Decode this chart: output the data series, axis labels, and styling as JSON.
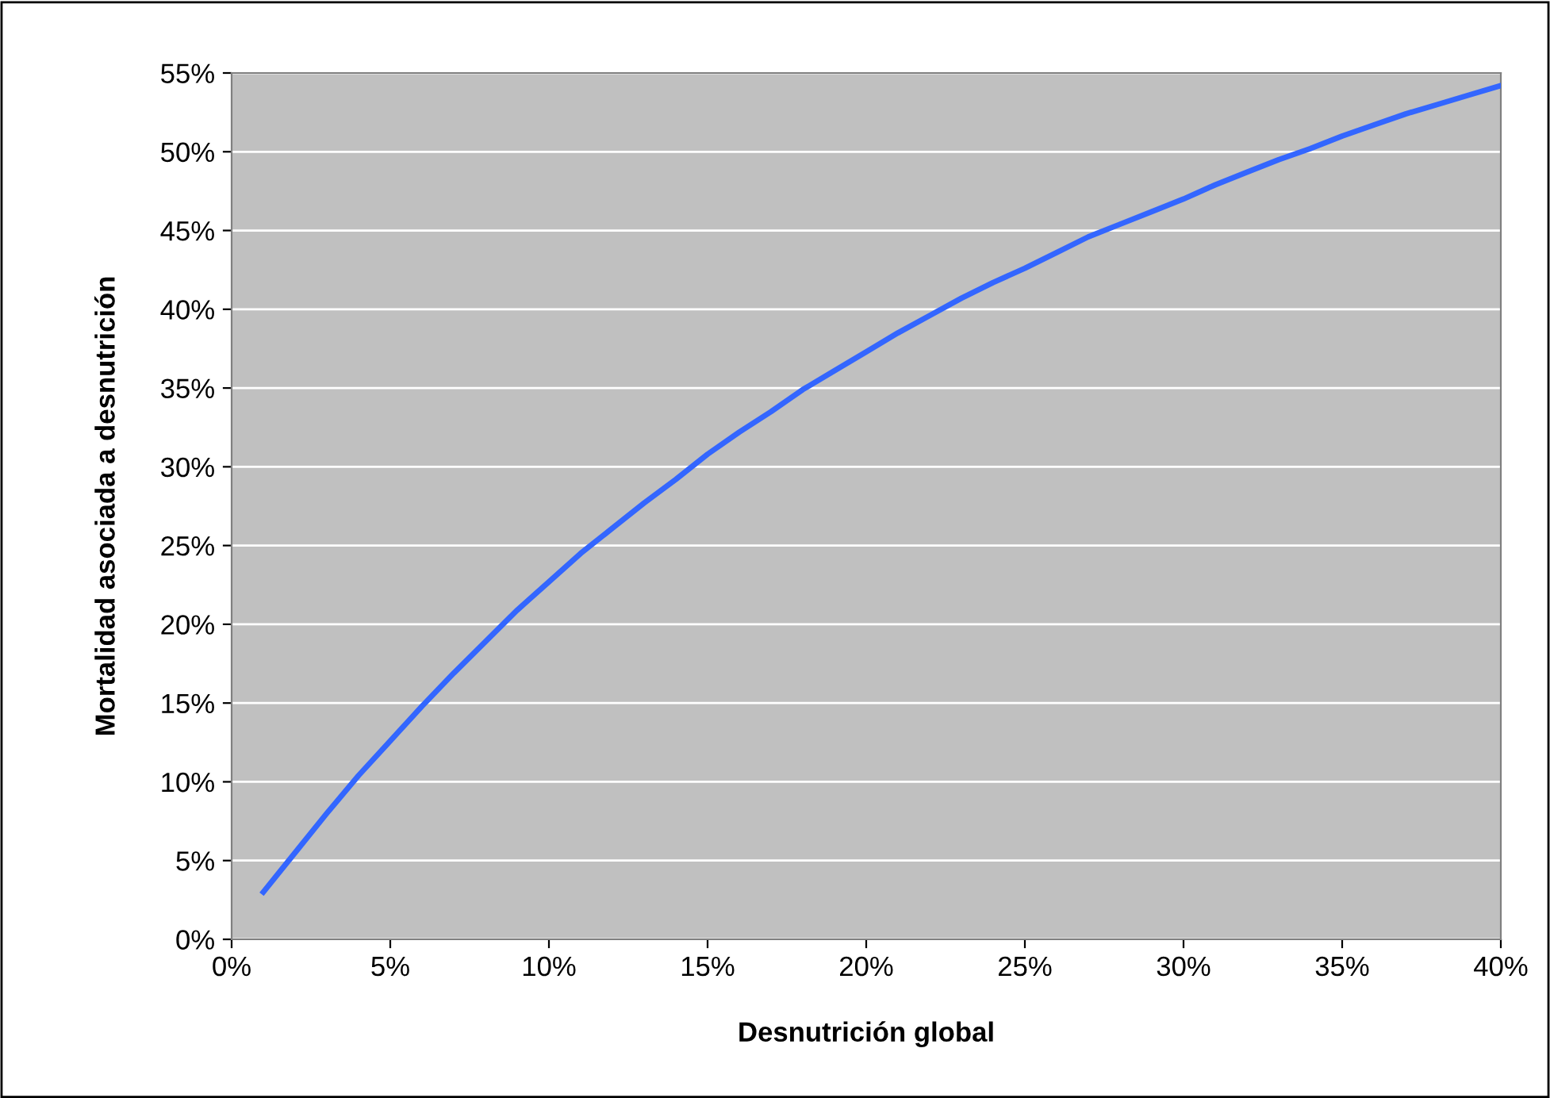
{
  "chart_data": {
    "type": "line",
    "xlabel": "Desnutrición global",
    "ylabel": "Mortalidad asociada a desnutrición",
    "x": [
      1,
      2,
      3,
      4,
      5,
      6,
      7,
      8,
      9,
      10,
      11,
      12,
      13,
      14,
      15,
      16,
      17,
      18,
      19,
      20,
      21,
      22,
      23,
      24,
      25,
      26,
      27,
      28,
      29,
      30,
      31,
      32,
      33,
      34,
      35,
      36,
      37,
      38,
      39,
      40
    ],
    "series": [
      {
        "color": "#3366ff",
        "values": [
          3,
          5.5,
          8,
          10.4,
          12.6,
          14.8,
          16.9,
          18.9,
          20.9,
          22.7,
          24.5,
          26.1,
          27.7,
          29.2,
          30.8,
          32.2,
          33.5,
          34.9,
          36.1,
          37.3,
          38.5,
          39.6,
          40.7,
          41.7,
          42.6,
          43.6,
          44.6,
          45.4,
          46.2,
          47,
          47.9,
          48.7,
          49.5,
          50.2,
          51,
          51.7,
          52.4,
          53,
          53.6,
          54.2
        ]
      }
    ],
    "xlim": [
      0,
      40
    ],
    "ylim": [
      0,
      55
    ],
    "xticks": [
      {
        "value": 0,
        "label": "0%"
      },
      {
        "value": 5,
        "label": "5%"
      },
      {
        "value": 10,
        "label": "10%"
      },
      {
        "value": 15,
        "label": "15%"
      },
      {
        "value": 20,
        "label": "20%"
      },
      {
        "value": 25,
        "label": "25%"
      },
      {
        "value": 30,
        "label": "30%"
      },
      {
        "value": 35,
        "label": "35%"
      },
      {
        "value": 40,
        "label": "40%"
      }
    ],
    "yticks": [
      {
        "value": 0,
        "label": "0%"
      },
      {
        "value": 5,
        "label": "5%"
      },
      {
        "value": 10,
        "label": "10%"
      },
      {
        "value": 15,
        "label": "15%"
      },
      {
        "value": 20,
        "label": "20%"
      },
      {
        "value": 25,
        "label": "25%"
      },
      {
        "value": 30,
        "label": "30%"
      },
      {
        "value": 35,
        "label": "35%"
      },
      {
        "value": 40,
        "label": "40%"
      },
      {
        "value": 45,
        "label": "45%"
      },
      {
        "value": 50,
        "label": "50%"
      },
      {
        "value": 55,
        "label": "55%"
      }
    ],
    "grid": "y",
    "marker": "none",
    "line_style": "solid"
  }
}
